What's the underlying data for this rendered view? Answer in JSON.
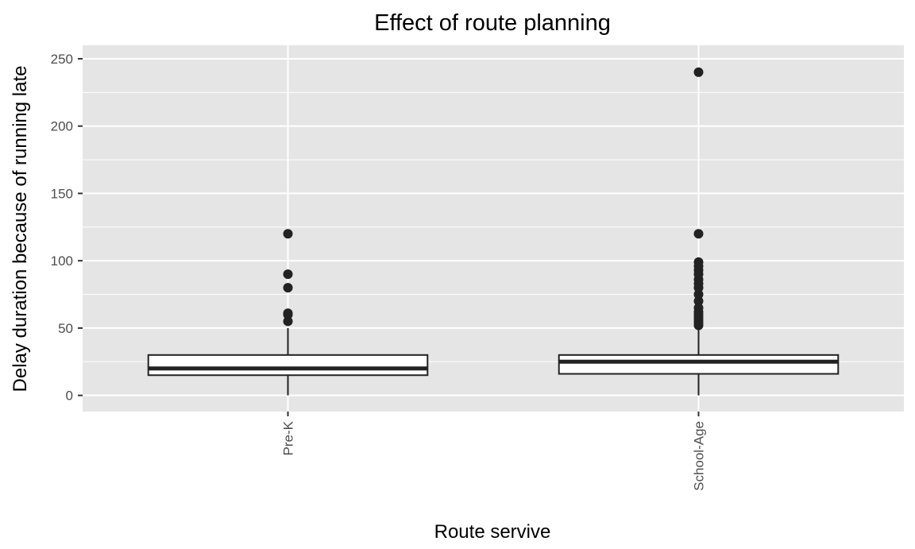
{
  "chart_data": {
    "type": "box",
    "title": "Effect of route planning",
    "xlabel": "Route servive",
    "ylabel": "Delay duration because of running late",
    "categories": [
      "Pre-K",
      "School-Age"
    ],
    "ylim": [
      -12,
      260
    ],
    "yticks": [
      0,
      50,
      100,
      150,
      200,
      250
    ],
    "grid": true,
    "legend": "none",
    "boxes": [
      {
        "category": "Pre-K",
        "whisker_low": 0,
        "q1": 15,
        "median": 20,
        "q3": 30,
        "whisker_high": 50,
        "outliers": [
          55,
          60,
          61,
          80,
          90,
          120
        ]
      },
      {
        "category": "School-Age",
        "whisker_low": 0,
        "q1": 16,
        "median": 25,
        "q3": 30,
        "whisker_high": 50,
        "outliers": [
          52,
          54,
          56,
          58,
          60,
          62,
          65,
          70,
          75,
          80,
          83,
          86,
          90,
          93,
          96,
          99,
          120,
          240
        ]
      }
    ],
    "colors": {
      "panel": "#e5e5e5",
      "grid": "#ffffff",
      "box_fill": "#ffffff",
      "box_stroke": "#222222",
      "outlier": "#222222"
    }
  }
}
